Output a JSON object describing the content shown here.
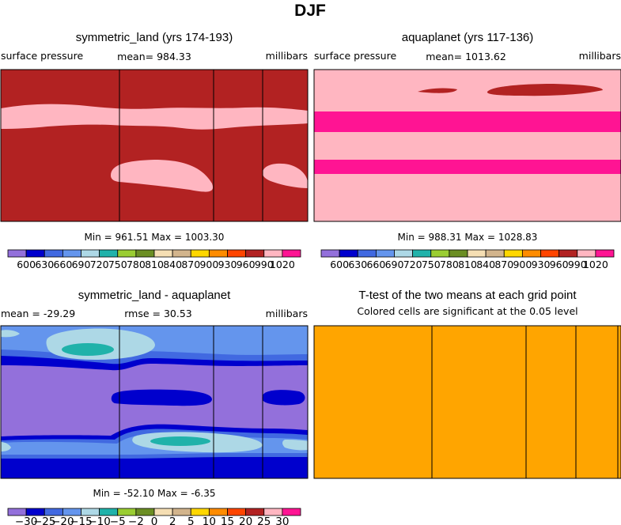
{
  "page_title": "DJF",
  "chart_data": [
    {
      "type": "heatmap",
      "title": "symmetric_land (yrs 174-193)",
      "left_label": "surface pressure",
      "center_label": "mean= 984.33",
      "right_label": "millibars",
      "minmax": "Min = 961.51 Max = 1003.30",
      "colorbar_ticks": [
        "600",
        "630",
        "660",
        "690",
        "720",
        "750",
        "780",
        "810",
        "840",
        "870",
        "900",
        "930",
        "960",
        "990",
        "1020"
      ]
    },
    {
      "type": "heatmap",
      "title": "aquaplanet (yrs 117-136)",
      "left_label": "surface pressure",
      "center_label": "mean= 1013.62",
      "right_label": "millibars",
      "minmax": "Min = 988.31 Max = 1028.83",
      "colorbar_ticks": [
        "600",
        "630",
        "660",
        "690",
        "720",
        "750",
        "780",
        "810",
        "840",
        "870",
        "900",
        "930",
        "960",
        "990",
        "1020"
      ]
    },
    {
      "type": "heatmap",
      "title": "symmetric_land - aquaplanet",
      "left_label": "mean = -29.29",
      "center_label": "rmse = 30.53",
      "right_label": "millibars",
      "minmax": "Min = -52.10 Max = -6.35",
      "colorbar_ticks": [
        "-30",
        "-25",
        "-20",
        "-15",
        "-10",
        "-5",
        "-2",
        "0",
        "2",
        "5",
        "10",
        "15",
        "20",
        "25",
        "30"
      ]
    },
    {
      "type": "heatmap",
      "title": "T-test of the two means at each grid point",
      "subtitle": "Colored cells are significant at the 0.05 level"
    }
  ],
  "colors": {
    "abs_palette": [
      "#9370db",
      "#0000cd",
      "#4169e1",
      "#6495ed",
      "#add8e6",
      "#20b2aa",
      "#9acd32",
      "#6b8e23",
      "#f5deb3",
      "#d2b48c",
      "#ffd700",
      "#ff8c00",
      "#ff4500",
      "#b22222",
      "#ffb6c1",
      "#ff1493"
    ],
    "diff_palette": [
      "#9370db",
      "#0000cd",
      "#4169e1",
      "#6495ed",
      "#add8e6",
      "#20b2aa",
      "#9acd32",
      "#6b8e23",
      "#f5deb3",
      "#d2b48c",
      "#ffd700",
      "#ff8c00",
      "#ff4500",
      "#b22222",
      "#ffb6c1",
      "#ff1493"
    ],
    "ttest": "#ffa500"
  }
}
